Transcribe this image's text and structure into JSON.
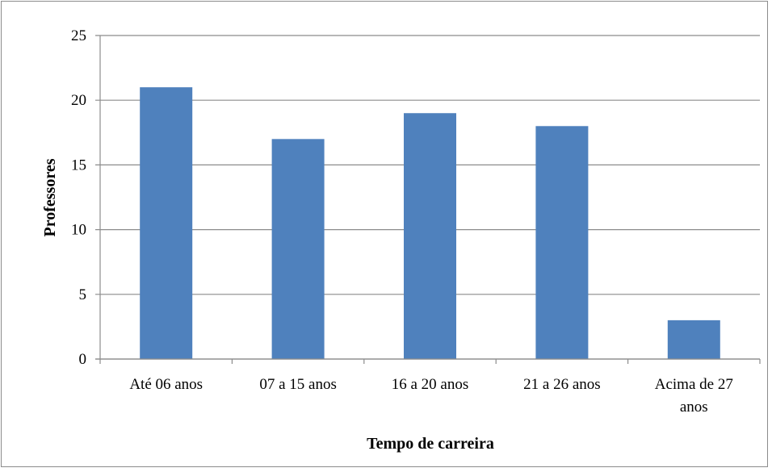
{
  "chart_data": {
    "type": "bar",
    "title": "",
    "xlabel": "Tempo de carreira",
    "ylabel": "Professores",
    "categories": [
      [
        "Até 06 anos"
      ],
      [
        "07 a 15 anos"
      ],
      [
        "16 a 20 anos"
      ],
      [
        "21 a 26 anos"
      ],
      [
        "Acima de 27",
        "anos"
      ]
    ],
    "values": [
      21,
      17,
      19,
      18,
      3
    ],
    "ylim": [
      0,
      25
    ],
    "yticks": [
      "0",
      "5",
      "10",
      "15",
      "20",
      "25"
    ],
    "ytick_values": [
      0,
      5,
      10,
      15,
      20,
      25
    ],
    "grid": true,
    "legend": "none",
    "bar_color": "#4f81bd",
    "grid_color": "#8c8c8c"
  }
}
